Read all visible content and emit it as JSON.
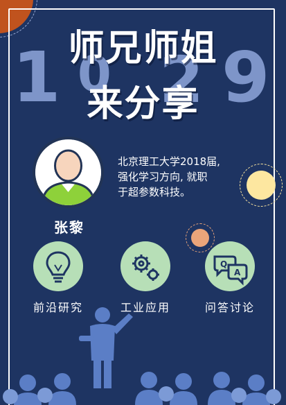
{
  "title": {
    "line1": "师兄师姐",
    "line2": "来分享",
    "background_digits": [
      "1",
      "0",
      "2",
      "9"
    ]
  },
  "speaker": {
    "name": "张黎",
    "bio_lines": [
      "北京理工大学2018届,",
      "强化学习方向, 就职",
      "于超参数科技。"
    ]
  },
  "features": [
    {
      "label": "前沿研究",
      "icon": "lightbulb-icon"
    },
    {
      "label": "工业应用",
      "icon": "gears-icon"
    },
    {
      "label": "问答讨论",
      "icon": "qa-chat-icon"
    }
  ],
  "colors": {
    "background": "#1e3462",
    "accent_orange": "#c0531e",
    "accent_yellow": "#fde7a0",
    "accent_peach": "#eba57a",
    "icon_circle": "#b7dfb7",
    "digit": "#8fa6dc",
    "people": "#5b7ec6"
  }
}
